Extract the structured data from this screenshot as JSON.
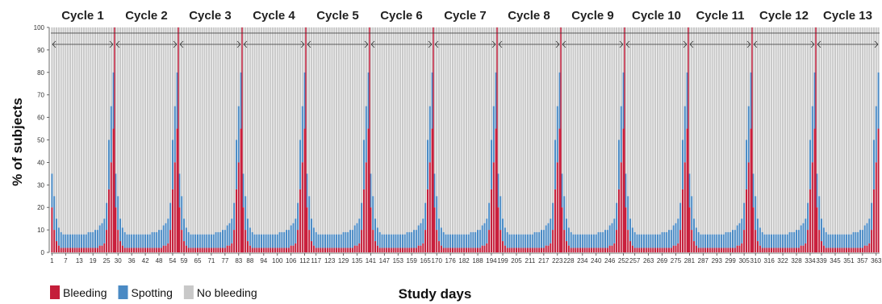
{
  "chart_data": {
    "type": "bar",
    "stacked": true,
    "xlabel": "Study days",
    "ylabel": "% of subjects",
    "ylim": [
      0,
      100
    ],
    "yticks": [
      0,
      10,
      20,
      30,
      40,
      50,
      60,
      70,
      80,
      90,
      100
    ],
    "xlim": [
      1,
      364
    ],
    "xticks": [
      1,
      7,
      13,
      19,
      25,
      30,
      36,
      42,
      48,
      54,
      59,
      65,
      71,
      77,
      83,
      88,
      94,
      100,
      106,
      112,
      117,
      123,
      129,
      135,
      141,
      147,
      153,
      159,
      165,
      170,
      176,
      182,
      188,
      194,
      199,
      205,
      211,
      217,
      223,
      228,
      234,
      240,
      246,
      252,
      257,
      263,
      269,
      275,
      281,
      287,
      293,
      299,
      305,
      310,
      316,
      322,
      328,
      334,
      339,
      345,
      351,
      357,
      363
    ],
    "cycles": [
      "Cycle 1",
      "Cycle 2",
      "Cycle 3",
      "Cycle 4",
      "Cycle 5",
      "Cycle 6",
      "Cycle 7",
      "Cycle 8",
      "Cycle 9",
      "Cycle 10",
      "Cycle 11",
      "Cycle 12",
      "Cycle 13"
    ],
    "cycle_length_days": 28,
    "cycle_pattern": {
      "description": "Percent of subjects per day within each 28-day cycle (cycle day 1-28); pattern repeats for every cycle",
      "bleeding": [
        20,
        10,
        5,
        3,
        2,
        2,
        2,
        2,
        2,
        2,
        2,
        2,
        2,
        2,
        2,
        2,
        2,
        2,
        2,
        2,
        2,
        3,
        3,
        4,
        10,
        28,
        40,
        55
      ],
      "spotting": [
        15,
        15,
        10,
        8,
        7,
        6,
        6,
        6,
        6,
        6,
        6,
        6,
        6,
        6,
        6,
        6,
        7,
        7,
        7,
        8,
        8,
        9,
        10,
        11,
        12,
        22,
        25,
        25
      ]
    },
    "series": [
      {
        "name": "Bleeding",
        "color": "#c41e3a"
      },
      {
        "name": "Spotting",
        "color": "#4a8ac4"
      },
      {
        "name": "No bleeding",
        "color": "#c8c8c8"
      }
    ],
    "legend_position": "bottom-left",
    "grid": false
  }
}
